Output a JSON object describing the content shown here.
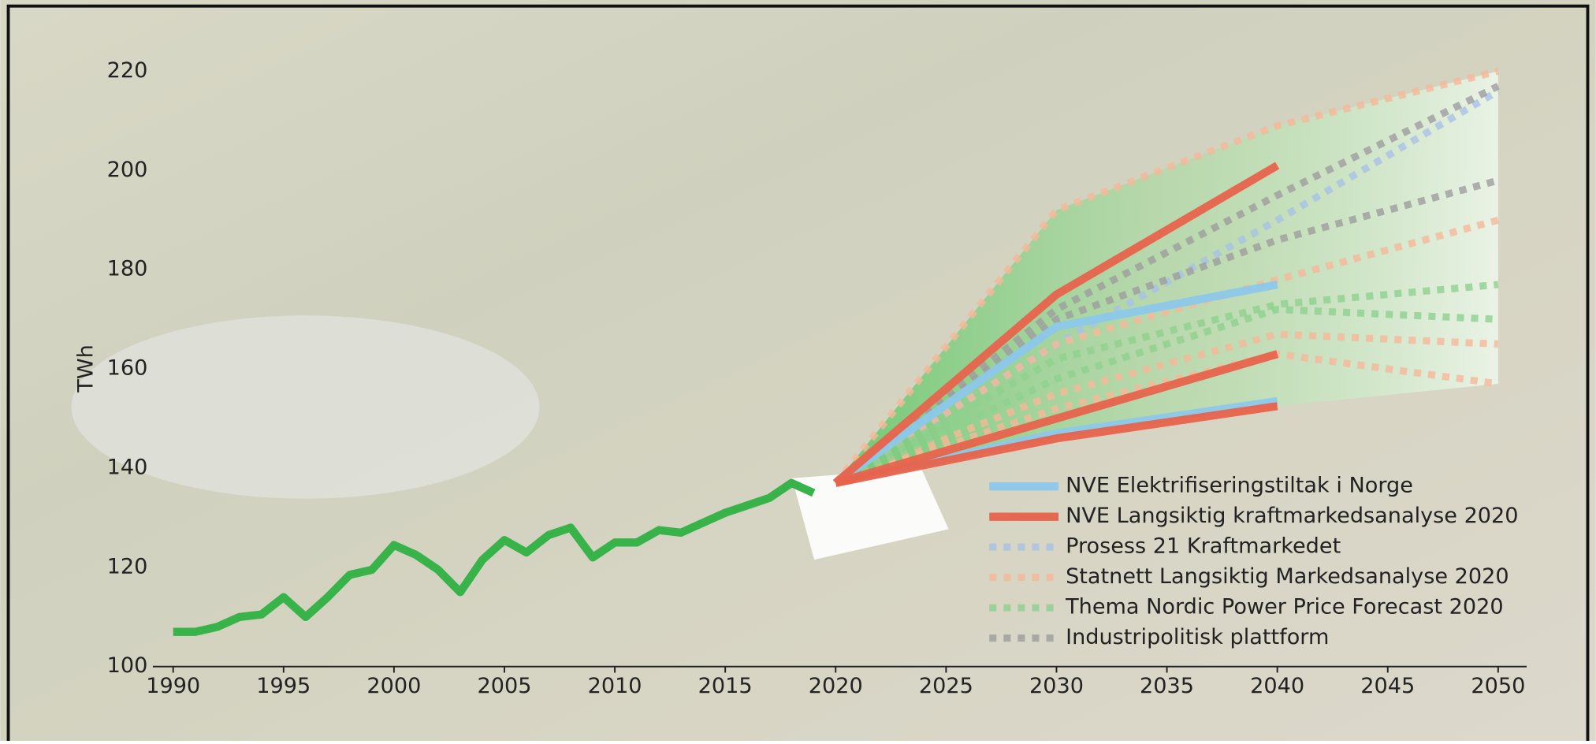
{
  "chart_data": {
    "type": "line",
    "y_label": "TWh",
    "ylim": [
      100,
      220
    ],
    "yticks": [
      100,
      120,
      140,
      160,
      180,
      200,
      220
    ],
    "xlim": [
      1990,
      2050
    ],
    "xticks": [
      1990,
      1995,
      2000,
      2005,
      2010,
      2015,
      2020,
      2025,
      2030,
      2035,
      2040,
      2045,
      2050
    ],
    "x": [
      1990,
      1991,
      1992,
      1993,
      1994,
      1995,
      1996,
      1997,
      1998,
      1999,
      2000,
      2001,
      2002,
      2003,
      2004,
      2005,
      2006,
      2007,
      2008,
      2009,
      2010,
      2011,
      2012,
      2013,
      2014,
      2015,
      2016,
      2017,
      2018,
      2019
    ],
    "history": {
      "color": "#37b34a",
      "values": [
        107,
        107,
        108,
        110,
        110.5,
        114,
        110,
        114,
        118.5,
        119.5,
        124.5,
        122.5,
        119.5,
        115,
        121.5,
        125.5,
        123,
        126.5,
        128,
        122,
        125,
        125,
        127.5,
        127,
        129,
        131,
        132.5,
        134,
        137,
        135
      ]
    },
    "scenario_x": [
      2020,
      2030,
      2040,
      2050
    ],
    "scenarios": [
      {
        "name": "NVE Elektrifiseringstiltak i Norge",
        "color": "#8cc8ea",
        "style": "solid",
        "lines": [
          [
            137,
            168.5,
            177,
            null
          ],
          [
            137,
            147,
            153.5,
            null
          ]
        ]
      },
      {
        "name": "NVE Langsiktig kraftmarkedsanalyse 2020",
        "color": "#e8634c",
        "style": "solid",
        "lines": [
          [
            137,
            175,
            201,
            null
          ],
          [
            137,
            150,
            163,
            null
          ],
          [
            137,
            146,
            152.5,
            null
          ]
        ]
      },
      {
        "name": "Prosess 21 Kraftmarkedet",
        "color": "#a8c2e6",
        "style": "dotted",
        "lines": [
          [
            137,
            165,
            190,
            216
          ]
        ]
      },
      {
        "name": "Statnett Langsiktig Markedsanalyse 2020",
        "color": "#f6b899",
        "style": "dotted",
        "lines": [
          [
            137,
            192,
            209,
            220
          ],
          [
            137,
            165,
            178,
            190
          ],
          [
            137,
            155,
            167,
            165
          ],
          [
            137,
            152,
            163,
            157
          ]
        ]
      },
      {
        "name": "Thema Nordic Power Price Forecast 2020",
        "color": "#8fd18f",
        "style": "dotted",
        "lines": [
          [
            137,
            162,
            173,
            177
          ],
          [
            137,
            158,
            172,
            170
          ]
        ]
      },
      {
        "name": "Industripolitisk plattform",
        "color": "#9d9d9d",
        "style": "dotted",
        "lines": [
          [
            137,
            172,
            195,
            217
          ],
          [
            137,
            170,
            186,
            198
          ]
        ]
      }
    ]
  }
}
